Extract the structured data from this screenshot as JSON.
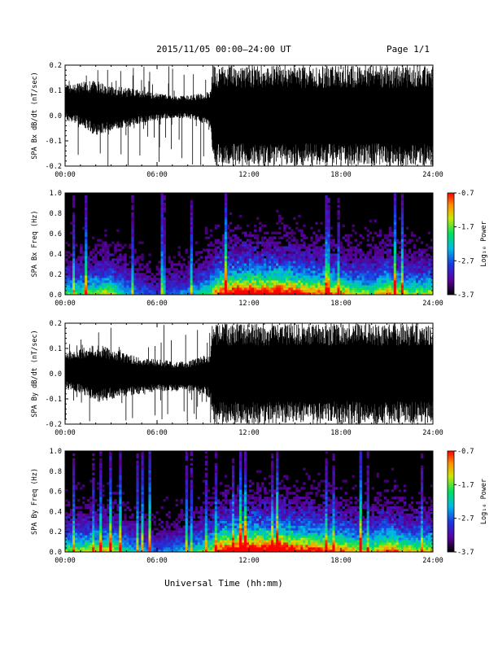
{
  "header": {
    "title": "2015/11/05  00:00–24:00 UT",
    "page": "Page 1/1"
  },
  "x_axis_title": "Universal Time (hh:mm)",
  "colors": {
    "waveform": "#000000",
    "spectrogram_background": "#000000",
    "colorbar": [
      "#000000",
      "#5a009a",
      "#1c38e0",
      "#00b8e8",
      "#00e060",
      "#c8e800",
      "#ff9000",
      "#ff0000"
    ]
  },
  "chart_data": [
    {
      "type": "line",
      "panel": "Bx waveform",
      "ylabel": "SPA Bx dB/dt (nT/sec)",
      "xlim": [
        0,
        24
      ],
      "ylim": [
        -0.2,
        0.2
      ],
      "x_ticks": [
        "00:00",
        "06:00",
        "12:00",
        "18:00",
        "24:00"
      ],
      "y_ticks": [
        "-0.2",
        "-0.1",
        "0.0",
        "0.1",
        "0.2"
      ],
      "envelope": {
        "x_hours": [
          0,
          1,
          2,
          3,
          4,
          5,
          6,
          7,
          8,
          9,
          9.5,
          9.6,
          12,
          15,
          18,
          20,
          21,
          22,
          23,
          24
        ],
        "upper": [
          0.12,
          0.13,
          0.14,
          0.12,
          0.11,
          0.1,
          0.09,
          0.08,
          0.08,
          0.09,
          0.1,
          0.2,
          0.2,
          0.2,
          0.2,
          0.2,
          0.2,
          0.2,
          0.2,
          0.2
        ],
        "lower": [
          -0.02,
          -0.04,
          -0.08,
          -0.06,
          -0.05,
          -0.03,
          -0.02,
          -0.01,
          -0.01,
          -0.03,
          -0.05,
          -0.2,
          -0.2,
          -0.2,
          -0.2,
          -0.2,
          -0.2,
          -0.2,
          -0.2,
          -0.2
        ]
      }
    },
    {
      "type": "heatmap",
      "panel": "Bx spectrogram",
      "ylabel": "SPA Bx Freq (Hz)",
      "xlim": [
        0,
        24
      ],
      "ylim": [
        0,
        1.0
      ],
      "x_ticks": [
        "00:00",
        "06:00",
        "12:00",
        "18:00",
        "24:00"
      ],
      "y_ticks": [
        "0.0",
        "0.2",
        "0.4",
        "0.6",
        "0.8",
        "1.0"
      ],
      "colorbar": {
        "label": "Log₁₀ Power",
        "range": [
          -3.7,
          -0.7
        ],
        "ticks": [
          "-0.7",
          "-1.7",
          "-2.7",
          "-3.7"
        ]
      },
      "activity": {
        "x_hours": [
          0,
          2,
          3,
          4,
          6,
          8,
          9.5,
          10,
          11,
          12,
          13,
          14,
          15,
          16,
          17,
          18,
          19,
          20,
          21,
          22,
          23,
          24
        ],
        "level": [
          0.45,
          0.5,
          0.55,
          0.35,
          0.2,
          0.3,
          0.5,
          0.75,
          0.85,
          0.9,
          0.85,
          0.9,
          0.8,
          0.75,
          0.7,
          0.65,
          0.55,
          0.5,
          0.7,
          0.55,
          0.5,
          0.55
        ]
      }
    },
    {
      "type": "line",
      "panel": "By waveform",
      "ylabel": "SPA By dB/dt (nT/sec)",
      "xlim": [
        0,
        24
      ],
      "ylim": [
        -0.2,
        0.2
      ],
      "x_ticks": [
        "00:00",
        "06:00",
        "12:00",
        "18:00",
        "24:00"
      ],
      "y_ticks": [
        "-0.2",
        "-0.1",
        "0.0",
        "0.1",
        "0.2"
      ],
      "envelope": {
        "x_hours": [
          0,
          1,
          2,
          3,
          4,
          5,
          6,
          7,
          8,
          9,
          9.5,
          9.6,
          12,
          15,
          18,
          20,
          21,
          22,
          23,
          24
        ],
        "upper": [
          0.09,
          0.1,
          0.12,
          0.1,
          0.08,
          0.06,
          0.06,
          0.05,
          0.05,
          0.07,
          0.09,
          0.2,
          0.2,
          0.2,
          0.2,
          0.2,
          0.2,
          0.2,
          0.2,
          0.2
        ],
        "lower": [
          -0.06,
          -0.08,
          -0.12,
          -0.1,
          -0.09,
          -0.08,
          -0.07,
          -0.07,
          -0.07,
          -0.08,
          -0.1,
          -0.2,
          -0.2,
          -0.2,
          -0.2,
          -0.2,
          -0.2,
          -0.2,
          -0.2,
          -0.2
        ]
      }
    },
    {
      "type": "heatmap",
      "panel": "By spectrogram",
      "ylabel": "SPA By Freq (Hz)",
      "xlim": [
        0,
        24
      ],
      "ylim": [
        0,
        1.0
      ],
      "x_ticks": [
        "00:00",
        "06:00",
        "12:00",
        "18:00",
        "24:00"
      ],
      "y_ticks": [
        "0.0",
        "0.2",
        "0.4",
        "0.6",
        "0.8",
        "1.0"
      ],
      "colorbar": {
        "label": "Log₁₀ Power",
        "range": [
          -3.7,
          -0.7
        ],
        "ticks": [
          "-0.7",
          "-1.7",
          "-2.7",
          "-3.7"
        ]
      },
      "activity": {
        "x_hours": [
          0,
          2,
          3,
          4,
          6,
          8,
          9.5,
          10,
          11,
          12,
          13,
          14,
          15,
          16,
          17,
          18,
          19,
          20,
          21,
          22,
          23,
          24
        ],
        "level": [
          0.5,
          0.55,
          0.6,
          0.4,
          0.25,
          0.35,
          0.55,
          0.8,
          0.9,
          0.95,
          0.9,
          0.95,
          0.85,
          0.8,
          0.75,
          0.7,
          0.6,
          0.55,
          0.75,
          0.6,
          0.55,
          0.6
        ]
      }
    }
  ]
}
